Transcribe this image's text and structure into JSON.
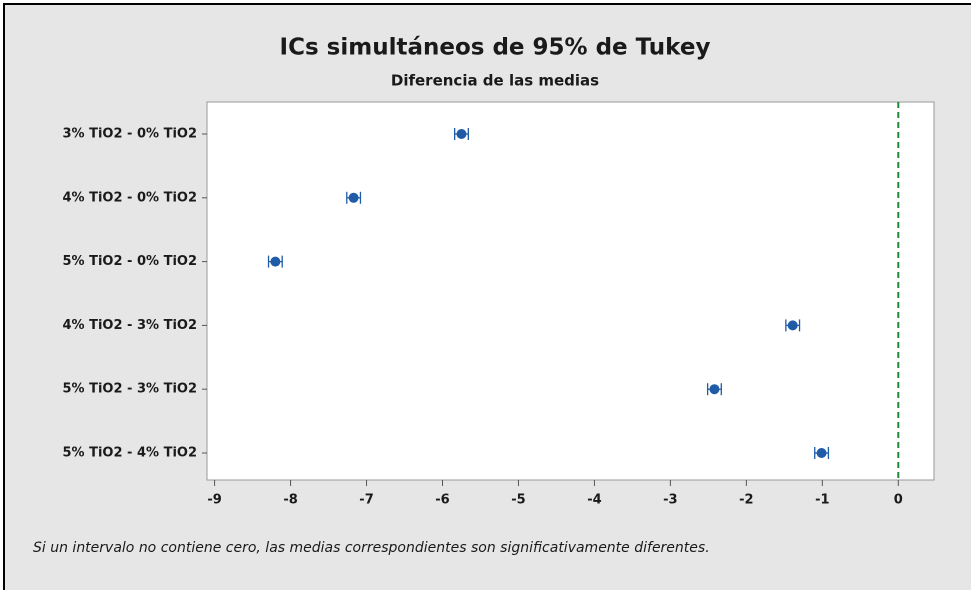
{
  "chart_data": {
    "type": "interval",
    "title": "ICs simultáneos de 95% de Tukey",
    "subtitle": "Diferencia de las medias",
    "note": "Si un intervalo no contiene cero, las medias correspondientes son significativamente diferentes.",
    "categories": [
      "3% TiO2 - 0% TiO2",
      "4% TiO2 - 0% TiO2",
      "5% TiO2 - 0% TiO2",
      "4% TiO2 - 3% TiO2",
      "5% TiO2 - 3% TiO2",
      "5% TiO2 - 4% TiO2"
    ],
    "values": [
      -5.75,
      -7.17,
      -8.2,
      -1.39,
      -2.42,
      -1.01
    ],
    "errors": [
      0.09,
      0.09,
      0.09,
      0.09,
      0.09,
      0.09
    ],
    "color": "#1f5ba6",
    "xlim": [
      -9.1,
      0.47
    ],
    "xticks": [
      -9,
      -8,
      -7,
      -6,
      -5,
      -4,
      -3,
      -2,
      -1,
      0
    ],
    "reference_line": 0,
    "reference_color": "#1e8a3a"
  }
}
